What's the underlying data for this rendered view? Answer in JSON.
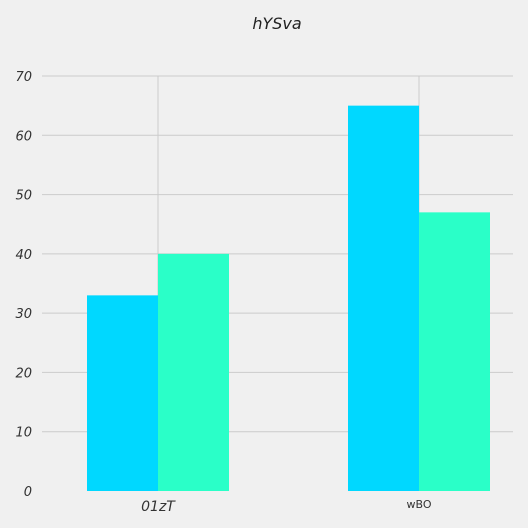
{
  "chart_data": {
    "type": "bar",
    "title": "hYSva",
    "xlabel": "",
    "ylabel": "",
    "categories": [
      "01zT",
      "wBO"
    ],
    "series": [
      {
        "color": "#00d8ff",
        "values": [
          33,
          65
        ]
      },
      {
        "color": "#2affc8",
        "values": [
          40,
          47
        ]
      }
    ],
    "ylim": [
      0,
      70
    ],
    "yticks": [
      0,
      10,
      20,
      30,
      40,
      50,
      60,
      70
    ],
    "grid": true,
    "legend": "none"
  }
}
